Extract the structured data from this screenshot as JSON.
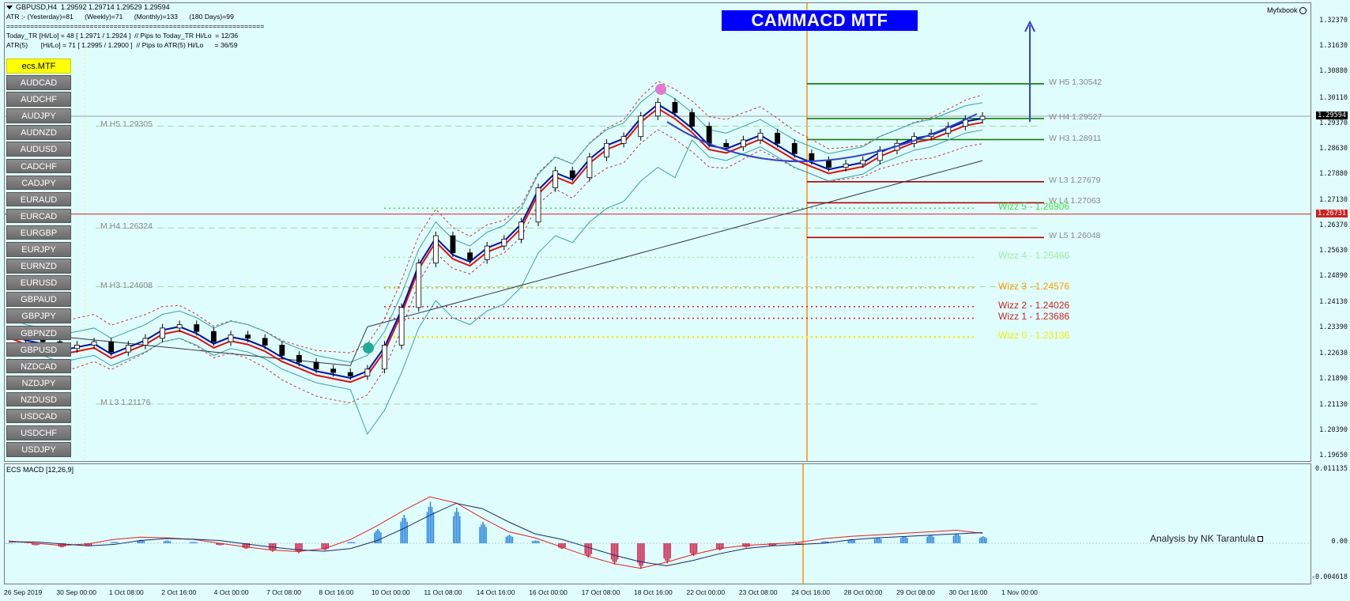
{
  "header": {
    "symbol_line": "GBPUSD,H4  1.29592 1.29714 1.29529 1.29594",
    "atr_line": "ATR :- (Yesterday)=81      (Weekly)=71      (Monthly)=133      (180 Days)=99",
    "separator": "=================================================================",
    "today_tr_line": "Today_TR [Hi/Lo] = 48 [ 1.2971 / 1.2924 ]  // Pips to Today_TR Hi/Lo  = 12/36",
    "atr5_line": "ATR(5)       [Hi/Lo] = 71 [ 1.2995 / 1.2900 ]  // Pips to ATR(5) Hi/Lo      = 36/59"
  },
  "title_banner": "CAMMACD MTF",
  "myfxbook_label": "Myfxbook",
  "symbols": {
    "active": "ecs.MTF",
    "items": [
      "AUDCAD",
      "AUDCHF",
      "AUDJPY",
      "AUDNZD",
      "AUDUSD",
      "CADCHF",
      "CADJPY",
      "EURAUD",
      "EURCAD",
      "EURGBP",
      "EURJPY",
      "EURNZD",
      "EURUSD",
      "GBPAUD",
      "GBPJPY",
      "GBPNZD",
      "GBPUSD",
      "NZDCAD",
      "NZDJPY",
      "NZDUSD",
      "USDCAD",
      "USDCHF",
      "USDJPY"
    ]
  },
  "monthly_levels": [
    {
      "label": "M  H5 1.29305",
      "price": 1.29305
    },
    {
      "label": "M  H4 1.26324",
      "price": 1.26324
    },
    {
      "label": "M  H3 1.24608",
      "price": 1.24608
    },
    {
      "label": "M  L3 1.21176",
      "price": 1.21176
    }
  ],
  "weekly_levels": [
    {
      "label": "W  H5 1.30542",
      "price": 1.30542,
      "color": "#007700"
    },
    {
      "label": "W  H4 1.29527",
      "price": 1.29527,
      "color": "#007700"
    },
    {
      "label": "W  H3 1.28911",
      "price": 1.28911,
      "color": "#007700"
    },
    {
      "label": "W  L3 1.27679",
      "price": 1.27679,
      "color": "#aa0000"
    },
    {
      "label": "W  L4 1.27063",
      "price": 1.27063,
      "color": "#aa0000"
    },
    {
      "label": "W  L5 1.26048",
      "price": 1.26048,
      "color": "#aa0000"
    }
  ],
  "wizz_levels": [
    {
      "label": "Wizz 5 - 1.26906",
      "price": 1.26906,
      "color": "#44dd44"
    },
    {
      "label": "Wizz 4 - 1.25466",
      "price": 1.25466,
      "color": "#99ee99"
    },
    {
      "label": "Wizz 3 - 1.24576",
      "price": 1.24576,
      "color": "#ff9900"
    },
    {
      "label": "Wizz 2 - 1.24026",
      "price": 1.24026,
      "color": "#cc2222"
    },
    {
      "label": "Wizz 1 - 1.23686",
      "price": 1.23686,
      "color": "#cc2222"
    },
    {
      "label": "Wizz 0 - 1.23136",
      "price": 1.23136,
      "color": "#eeee00"
    }
  ],
  "price_axis": {
    "min": 1.19465,
    "max": 1.329,
    "ticks": [
      "1.32370",
      "1.31630",
      "1.30880",
      "1.30110",
      "1.29370",
      "1.28630",
      "1.27880",
      "1.27130",
      "1.26370",
      "1.25630",
      "1.24890",
      "1.24130",
      "1.23390",
      "1.22630",
      "1.21890",
      "1.21130",
      "1.20390",
      "1.19650"
    ],
    "current_price": "1.29594",
    "marked_price": "1.26731"
  },
  "macd_panel": {
    "title": "ECS MACD [12,26,9]",
    "axis": [
      "0.011135",
      "0.00",
      "-0.004618"
    ],
    "analysis_by": "Analysis by NK Tarantula"
  },
  "time_axis": [
    "26 Sep 2019",
    "30 Sep 00:00",
    "1 Oct 08:00",
    "2 Oct 16:00",
    "4 Oct 00:00",
    "7 Oct 08:00",
    "8 Oct 16:00",
    "10 Oct 00:00",
    "11 Oct 08:00",
    "14 Oct 16:00",
    "16 Oct 00:00",
    "17 Oct 08:00",
    "18 Oct 16:00",
    "22 Oct 00:00",
    "23 Oct 08:00",
    "24 Oct 16:00",
    "28 Oct 00:00",
    "29 Oct 08:00",
    "30 Oct 16:00",
    "1 Nov 00:00"
  ],
  "chart_data": {
    "type": "candlestick",
    "symbol": "GBPUSD",
    "timeframe": "H4",
    "close_path": [
      1.233,
      1.231,
      1.23,
      1.228,
      1.229,
      1.23,
      1.227,
      1.229,
      1.231,
      1.234,
      1.235,
      1.233,
      1.23,
      1.232,
      1.231,
      1.229,
      1.226,
      1.224,
      1.222,
      1.221,
      1.22,
      1.222,
      1.229,
      1.24,
      1.253,
      1.261,
      1.256,
      1.254,
      1.258,
      1.26,
      1.265,
      1.275,
      1.28,
      1.278,
      1.284,
      1.288,
      1.29,
      1.296,
      1.3,
      1.297,
      1.293,
      1.288,
      1.287,
      1.289,
      1.291,
      1.288,
      1.285,
      1.283,
      1.281,
      1.282,
      1.283,
      1.286,
      1.288,
      1.29,
      1.291,
      1.293,
      1.295,
      1.2959
    ],
    "macd_hist": [
      0.0,
      -0.0003,
      -0.0006,
      -0.0004,
      0.0002,
      0.0005,
      0.0004,
      0.0002,
      -0.0003,
      -0.0008,
      -0.0012,
      -0.0014,
      -0.001,
      0.0002,
      0.002,
      0.004,
      0.0058,
      0.005,
      0.003,
      0.0012,
      0.0004,
      -0.0008,
      -0.002,
      -0.003,
      -0.0036,
      -0.0028,
      -0.0018,
      -0.001,
      -0.0006,
      -0.0004,
      -0.0002,
      0.0003,
      0.0006,
      0.0008,
      0.001,
      0.0012,
      0.0014,
      0.001
    ]
  }
}
